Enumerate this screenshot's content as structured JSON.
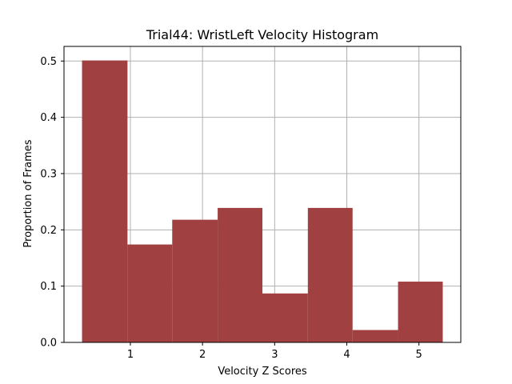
{
  "chart_data": {
    "type": "bar",
    "title": "Trial44: WristLeft Velocity Histogram",
    "xlabel": "Velocity Z Scores",
    "ylabel": "Proportion of Frames",
    "bins": [
      {
        "x0": 0.33,
        "x1": 0.96,
        "value": 0.501
      },
      {
        "x0": 0.96,
        "x1": 1.58,
        "value": 0.174
      },
      {
        "x0": 1.58,
        "x1": 2.21,
        "value": 0.218
      },
      {
        "x0": 2.21,
        "x1": 2.83,
        "value": 0.239
      },
      {
        "x0": 2.83,
        "x1": 3.46,
        "value": 0.087
      },
      {
        "x0": 3.46,
        "x1": 4.08,
        "value": 0.239
      },
      {
        "x0": 4.08,
        "x1": 4.71,
        "value": 0.022
      },
      {
        "x0": 4.71,
        "x1": 5.33,
        "value": 0.108
      }
    ],
    "xlim": [
      0.08,
      5.58
    ],
    "ylim": [
      0,
      0.526
    ],
    "xticks": [
      1,
      2,
      3,
      4,
      5
    ],
    "xtick_labels": [
      "1",
      "2",
      "3",
      "4",
      "5"
    ],
    "yticks": [
      0.0,
      0.1,
      0.2,
      0.3,
      0.4,
      0.5
    ],
    "ytick_labels": [
      "0.0",
      "0.1",
      "0.2",
      "0.3",
      "0.4",
      "0.5"
    ],
    "grid": true,
    "bar_color": "#a04040",
    "grid_color": "#b0b0b0"
  }
}
